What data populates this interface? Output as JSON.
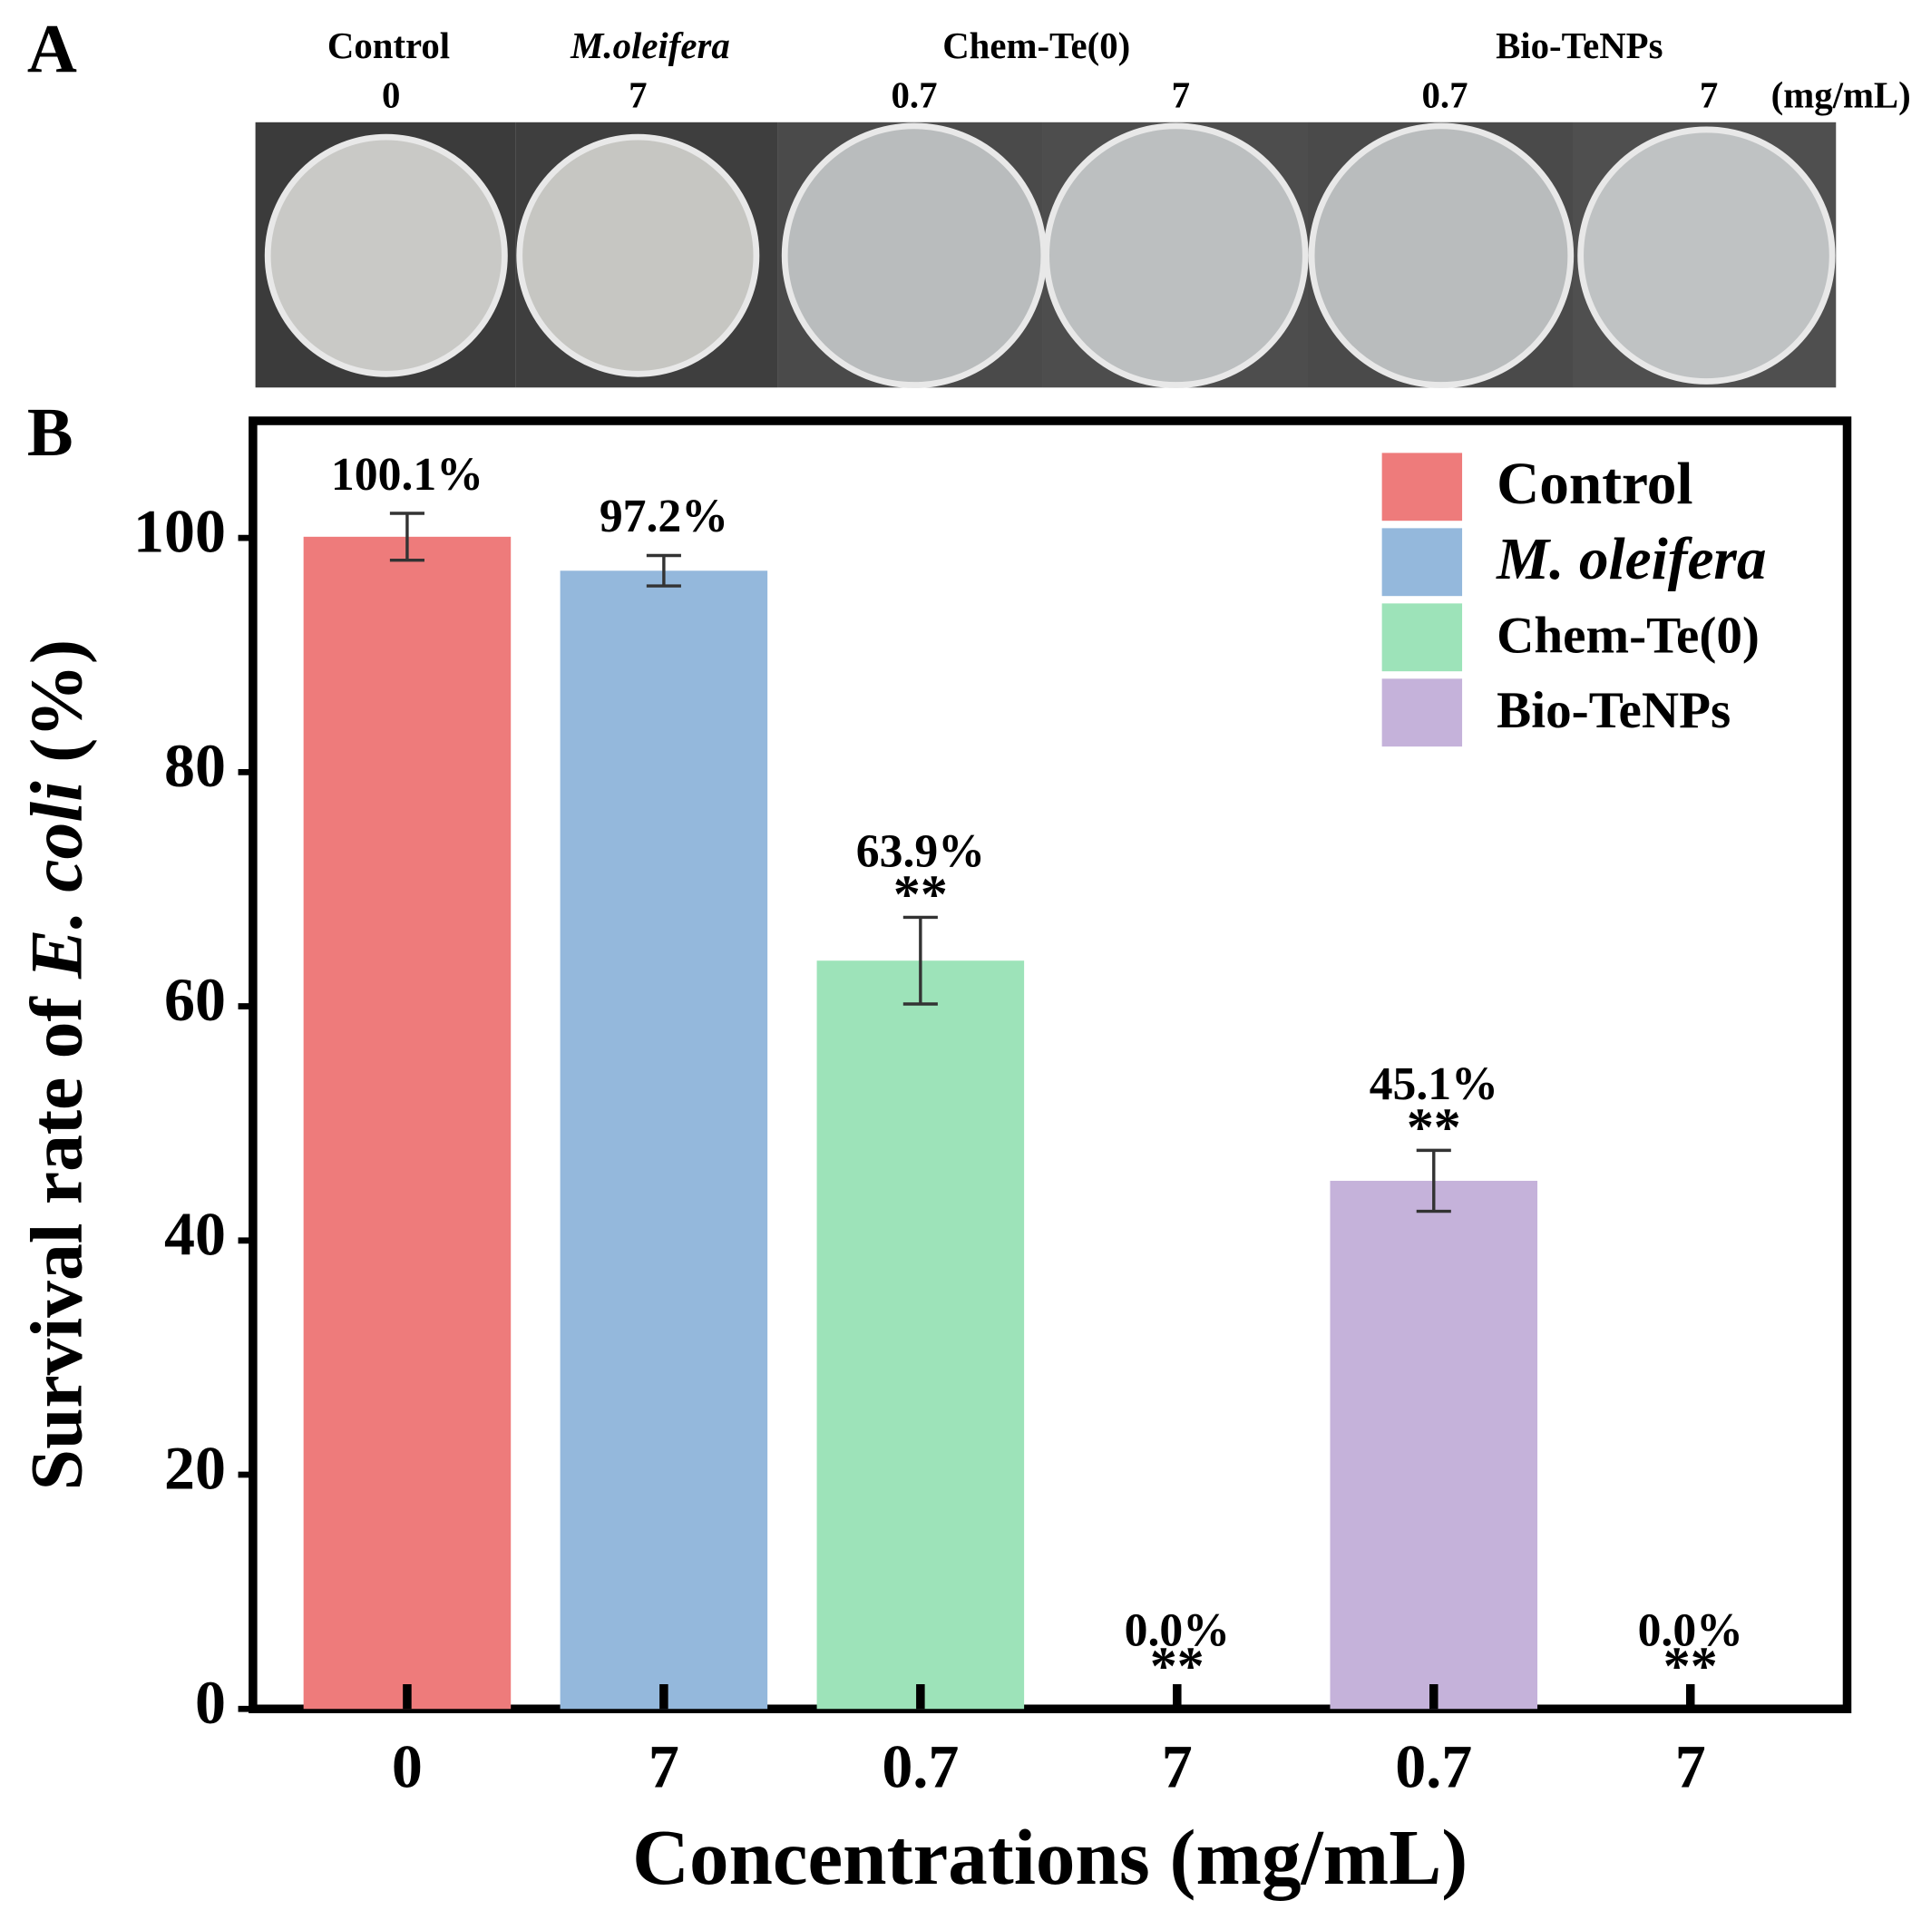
{
  "panel_labels": [
    "A",
    "B"
  ],
  "panel_a": {
    "groups": [
      "Control",
      "M.oleifera",
      "Chem-Te(0)",
      "Bio-TeNPs"
    ],
    "concentrations": [
      "0",
      "7",
      "0.7",
      "7",
      "0.7",
      "7"
    ],
    "unit": "(mg/mL)"
  },
  "chart_data": {
    "type": "bar",
    "xlabel": "Concentrations (mg/mL)",
    "ylabel": [
      "Survival rate of ",
      "E. coli",
      " (%)"
    ],
    "categories": [
      "0",
      "7",
      "0.7",
      "7",
      "0.7",
      "7"
    ],
    "series": [
      {
        "name": "Control",
        "color": "#ee7b7b",
        "values": [
          100.1,
          null,
          null,
          null,
          null,
          null
        ],
        "errors": [
          2.0,
          null,
          null,
          null,
          null,
          null
        ],
        "value_labels": [
          "100.1%",
          null,
          null,
          null,
          null,
          null
        ]
      },
      {
        "name": "M. oleifera",
        "color": "#94b8dc",
        "values": [
          null,
          97.2,
          null,
          null,
          null,
          null
        ],
        "errors": [
          null,
          1.3,
          null,
          null,
          null,
          null
        ],
        "value_labels": [
          null,
          "97.2%",
          null,
          null,
          null,
          null
        ]
      },
      {
        "name": "Chem-Te(0)",
        "color": "#9de3b9",
        "values": [
          null,
          null,
          63.9,
          0,
          null,
          null
        ],
        "errors": [
          null,
          null,
          3.7,
          0,
          null,
          null
        ],
        "value_labels": [
          null,
          null,
          "63.9%",
          "0.0%",
          null,
          null
        ]
      },
      {
        "name": "Bio-TeNPs",
        "color": "#c5b2da",
        "values": [
          null,
          null,
          null,
          null,
          45.1,
          0
        ],
        "errors": [
          null,
          null,
          null,
          null,
          2.6,
          0
        ],
        "value_labels": [
          null,
          null,
          null,
          null,
          "45.1%",
          "0.0%"
        ]
      }
    ],
    "annotations": [
      null,
      null,
      "**",
      "**",
      "**",
      "**"
    ],
    "ylim": [
      0,
      110
    ],
    "yticks": [
      0,
      20,
      40,
      60,
      80,
      100
    ],
    "legend": "upper right"
  }
}
